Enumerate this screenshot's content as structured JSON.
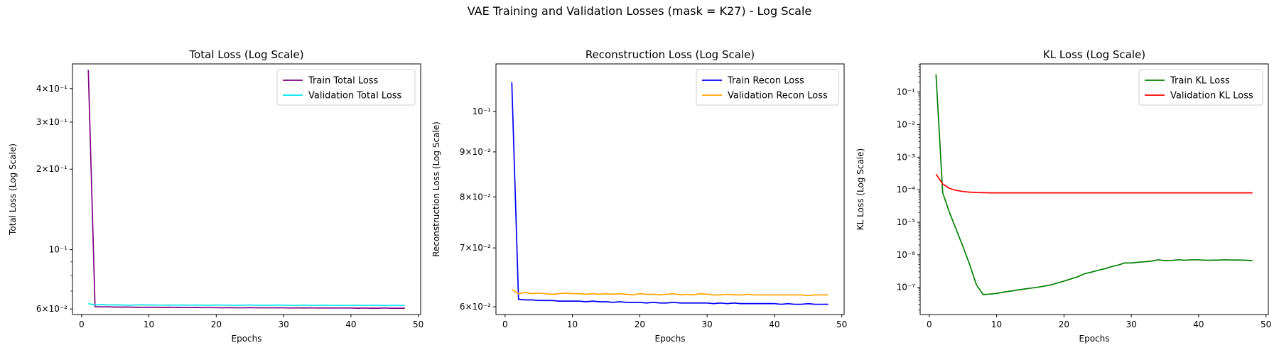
{
  "figure": {
    "suptitle": "VAE Training and Validation Losses (mask = K27) - Log Scale"
  },
  "chart_data": [
    {
      "type": "line",
      "title": "Total Loss (Log Scale)",
      "xlabel": "Epochs",
      "ylabel": "Total Loss (Log Scale)",
      "yscale": "log",
      "xlim": [
        -1.35,
        50.35
      ],
      "ylim": [
        0.0572,
        0.495
      ],
      "xticks": [
        0,
        10,
        20,
        30,
        40,
        50
      ],
      "yticks": [
        {
          "value": 0.06,
          "label": "6×10⁻²"
        },
        {
          "value": 0.1,
          "label": "10⁻¹"
        },
        {
          "value": 0.2,
          "label": "2×10⁻¹"
        },
        {
          "value": 0.3,
          "label": "3×10⁻¹"
        },
        {
          "value": 0.4,
          "label": "4×10⁻¹"
        }
      ],
      "legend_position": "upper right",
      "grid": false,
      "series": [
        {
          "name": "Train Total Loss",
          "color": "#800080",
          "x": [
            1,
            2,
            3,
            4,
            5,
            6,
            7,
            8,
            9,
            10,
            11,
            12,
            13,
            14,
            15,
            16,
            17,
            18,
            19,
            20,
            21,
            22,
            23,
            24,
            25,
            26,
            27,
            28,
            29,
            30,
            31,
            32,
            33,
            34,
            35,
            36,
            37,
            38,
            39,
            40,
            41,
            42,
            43,
            44,
            45,
            46,
            47,
            48
          ],
          "y": [
            0.47,
            0.0612,
            0.0611,
            0.0611,
            0.061,
            0.061,
            0.061,
            0.0609,
            0.0609,
            0.0609,
            0.0609,
            0.0608,
            0.0609,
            0.0608,
            0.0608,
            0.0607,
            0.0608,
            0.0607,
            0.0607,
            0.0607,
            0.0606,
            0.0607,
            0.0606,
            0.0606,
            0.0607,
            0.0606,
            0.0606,
            0.0606,
            0.0606,
            0.0606,
            0.0605,
            0.0606,
            0.0605,
            0.0606,
            0.0605,
            0.0605,
            0.0605,
            0.0605,
            0.0605,
            0.0605,
            0.0604,
            0.0605,
            0.0604,
            0.0604,
            0.0605,
            0.0604,
            0.0604,
            0.0604
          ]
        },
        {
          "name": "Validation Total Loss",
          "color": "#00e5ee",
          "x": [
            1,
            2,
            3,
            4,
            5,
            6,
            7,
            8,
            9,
            10,
            11,
            12,
            13,
            14,
            15,
            16,
            17,
            18,
            19,
            20,
            21,
            22,
            23,
            24,
            25,
            26,
            27,
            28,
            29,
            30,
            31,
            32,
            33,
            34,
            35,
            36,
            37,
            38,
            39,
            40,
            41,
            42,
            43,
            44,
            45,
            46,
            47,
            48
          ],
          "y": [
            0.0628,
            0.0621,
            0.0623,
            0.0621,
            0.0622,
            0.0621,
            0.062,
            0.0621,
            0.0622,
            0.0621,
            0.0621,
            0.062,
            0.0621,
            0.062,
            0.0621,
            0.062,
            0.0621,
            0.062,
            0.0619,
            0.0621,
            0.062,
            0.062,
            0.0619,
            0.062,
            0.0621,
            0.0619,
            0.062,
            0.0619,
            0.0621,
            0.062,
            0.0619,
            0.0619,
            0.062,
            0.0619,
            0.0619,
            0.062,
            0.0619,
            0.0619,
            0.0619,
            0.0619,
            0.0619,
            0.0619,
            0.0619,
            0.0619,
            0.0618,
            0.0619,
            0.0619,
            0.0619
          ]
        }
      ]
    },
    {
      "type": "line",
      "title": "Reconstruction Loss (Log Scale)",
      "xlabel": "Epochs",
      "ylabel": "Reconstruction Loss (Log Scale)",
      "yscale": "log",
      "xlim": [
        -1.35,
        50.35
      ],
      "ylim": [
        0.0588,
        0.1133
      ],
      "xticks": [
        0,
        10,
        20,
        30,
        40,
        50
      ],
      "yticks": [
        {
          "value": 0.06,
          "label": "6×10⁻²"
        },
        {
          "value": 0.07,
          "label": "7×10⁻²"
        },
        {
          "value": 0.08,
          "label": "8×10⁻²"
        },
        {
          "value": 0.09,
          "label": "9×10⁻²"
        },
        {
          "value": 0.1,
          "label": "10⁻¹"
        }
      ],
      "legend_position": "upper right",
      "grid": false,
      "series": [
        {
          "name": "Train Recon Loss",
          "color": "#0000ff",
          "x": [
            1,
            2,
            3,
            4,
            5,
            6,
            7,
            8,
            9,
            10,
            11,
            12,
            13,
            14,
            15,
            16,
            17,
            18,
            19,
            20,
            21,
            22,
            23,
            24,
            25,
            26,
            27,
            28,
            29,
            30,
            31,
            32,
            33,
            34,
            35,
            36,
            37,
            38,
            39,
            40,
            41,
            42,
            43,
            44,
            45,
            46,
            47,
            48
          ],
          "y": [
            0.108,
            0.0612,
            0.0611,
            0.0611,
            0.061,
            0.061,
            0.061,
            0.0609,
            0.0609,
            0.0609,
            0.0609,
            0.0608,
            0.0609,
            0.0608,
            0.0608,
            0.0607,
            0.0608,
            0.0607,
            0.0607,
            0.0607,
            0.0606,
            0.0607,
            0.0606,
            0.0606,
            0.0607,
            0.0606,
            0.0606,
            0.0606,
            0.0606,
            0.0606,
            0.0605,
            0.0606,
            0.0605,
            0.0606,
            0.0605,
            0.0605,
            0.0605,
            0.0605,
            0.0605,
            0.0605,
            0.0604,
            0.0605,
            0.0604,
            0.0604,
            0.0605,
            0.0604,
            0.0604,
            0.0604
          ]
        },
        {
          "name": "Validation Recon Loss",
          "color": "#ffa500",
          "x": [
            1,
            2,
            3,
            4,
            5,
            6,
            7,
            8,
            9,
            10,
            11,
            12,
            13,
            14,
            15,
            16,
            17,
            18,
            19,
            20,
            21,
            22,
            23,
            24,
            25,
            26,
            27,
            28,
            29,
            30,
            31,
            32,
            33,
            34,
            35,
            36,
            37,
            38,
            39,
            40,
            41,
            42,
            43,
            44,
            45,
            46,
            47,
            48
          ],
          "y": [
            0.0628,
            0.0621,
            0.0623,
            0.0621,
            0.0622,
            0.0621,
            0.062,
            0.0621,
            0.0622,
            0.0621,
            0.0621,
            0.062,
            0.0621,
            0.062,
            0.0621,
            0.062,
            0.0621,
            0.062,
            0.0619,
            0.0621,
            0.062,
            0.062,
            0.0619,
            0.062,
            0.0621,
            0.0619,
            0.062,
            0.0619,
            0.0621,
            0.062,
            0.0619,
            0.0619,
            0.062,
            0.0619,
            0.0619,
            0.062,
            0.0619,
            0.0619,
            0.0619,
            0.0619,
            0.0619,
            0.0619,
            0.0619,
            0.0619,
            0.0618,
            0.0619,
            0.0619,
            0.0619
          ]
        }
      ]
    },
    {
      "type": "line",
      "title": "KL Loss (Log Scale)",
      "xlabel": "Epochs",
      "ylabel": "KL Loss (Log Scale)",
      "yscale": "log",
      "xlim": [
        -1.35,
        50.35
      ],
      "ylim": [
        1.46e-08,
        0.731
      ],
      "xticks": [
        0,
        10,
        20,
        30,
        40,
        50
      ],
      "yticks": [
        {
          "value": 1e-07,
          "label": "10⁻⁷"
        },
        {
          "value": 1e-06,
          "label": "10⁻⁶"
        },
        {
          "value": 1e-05,
          "label": "10⁻⁵"
        },
        {
          "value": 0.0001,
          "label": "10⁻⁴"
        },
        {
          "value": 0.001,
          "label": "10⁻³"
        },
        {
          "value": 0.01,
          "label": "10⁻²"
        },
        {
          "value": 0.1,
          "label": "10⁻¹"
        }
      ],
      "legend_position": "upper right",
      "grid": false,
      "series": [
        {
          "name": "Train KL Loss",
          "color": "#008000",
          "x": [
            1,
            2,
            3,
            4,
            5,
            6,
            7,
            8,
            9,
            10,
            11,
            12,
            13,
            14,
            15,
            16,
            17,
            18,
            19,
            20,
            21,
            22,
            23,
            24,
            25,
            26,
            27,
            28,
            29,
            30,
            31,
            32,
            33,
            34,
            35,
            36,
            37,
            38,
            39,
            40,
            41,
            42,
            43,
            44,
            45,
            46,
            47,
            48
          ],
          "y": [
            0.35,
            8e-05,
            2e-05,
            6e-06,
            1.8e-06,
            5e-07,
            1.2e-07,
            6e-08,
            6.2e-08,
            6.5e-08,
            7.1e-08,
            7.6e-08,
            8.2e-08,
            8.8e-08,
            9.4e-08,
            1e-07,
            1.08e-07,
            1.18e-07,
            1.35e-07,
            1.55e-07,
            1.8e-07,
            2.1e-07,
            2.6e-07,
            2.9e-07,
            3.3e-07,
            3.7e-07,
            4.3e-07,
            4.8e-07,
            5.6e-07,
            5.6e-07,
            5.9e-07,
            6.1e-07,
            6.4e-07,
            7e-07,
            6.6e-07,
            6.7e-07,
            7e-07,
            6.8e-07,
            7e-07,
            7e-07,
            6.8e-07,
            6.8e-07,
            6.9e-07,
            7e-07,
            6.9e-07,
            6.9e-07,
            6.8e-07,
            6.6e-07
          ]
        },
        {
          "name": "Validation KL Loss",
          "color": "#ff0000",
          "x": [
            1,
            2,
            3,
            4,
            5,
            6,
            7,
            8,
            9,
            10,
            11,
            12,
            13,
            14,
            15,
            16,
            17,
            18,
            19,
            20,
            21,
            22,
            23,
            24,
            25,
            26,
            27,
            28,
            29,
            30,
            31,
            32,
            33,
            34,
            35,
            36,
            37,
            38,
            39,
            40,
            41,
            42,
            43,
            44,
            45,
            46,
            47,
            48
          ],
          "y": [
            0.0003,
            0.00015,
            0.00011,
            9.5e-05,
            8.8e-05,
            8.4e-05,
            8.2e-05,
            8.1e-05,
            8e-05,
            8e-05,
            8e-05,
            8e-05,
            8e-05,
            8e-05,
            8e-05,
            8e-05,
            8e-05,
            8e-05,
            8e-05,
            8e-05,
            8e-05,
            8e-05,
            8e-05,
            8e-05,
            8e-05,
            8e-05,
            8e-05,
            8e-05,
            8e-05,
            8e-05,
            8e-05,
            8e-05,
            8e-05,
            8e-05,
            8e-05,
            8e-05,
            8e-05,
            8e-05,
            8e-05,
            8e-05,
            8e-05,
            8e-05,
            8e-05,
            8e-05,
            8e-05,
            8e-05,
            8e-05,
            8e-05
          ]
        }
      ]
    }
  ]
}
